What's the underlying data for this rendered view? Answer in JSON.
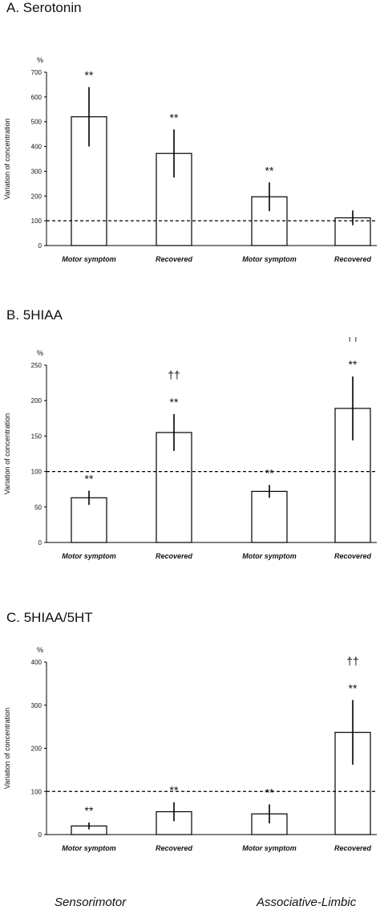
{
  "chart_data": [
    {
      "type": "bar",
      "title": "A. Serotonin",
      "ylabel": "Variation of concentration",
      "yunit": "%",
      "ylim": [
        0,
        700
      ],
      "yticks": [
        0,
        100,
        200,
        300,
        400,
        500,
        600,
        700
      ],
      "reference_line": 100,
      "categories": [
        "Motor symptom",
        "Recovered",
        "Motor symptom",
        "Recovered"
      ],
      "values": [
        520,
        372,
        197,
        112
      ],
      "errors": [
        120,
        97,
        58,
        30
      ],
      "annotations": [
        [
          "**"
        ],
        [
          "**"
        ],
        [
          "**"
        ],
        []
      ]
    },
    {
      "type": "bar",
      "title": "B. 5HIAA",
      "ylabel": "Variation of concentration",
      "yunit": "%",
      "ylim": [
        0,
        250
      ],
      "yticks": [
        0,
        50,
        100,
        150,
        200,
        250
      ],
      "reference_line": 100,
      "categories": [
        "Motor symptom",
        "Recovered",
        "Motor symptom",
        "Recovered"
      ],
      "values": [
        63,
        155,
        72,
        189
      ],
      "errors": [
        10,
        26,
        9,
        45
      ],
      "annotations": [
        [
          "**"
        ],
        [
          "**",
          "††"
        ],
        [
          "**"
        ],
        [
          "**",
          "††"
        ]
      ]
    },
    {
      "type": "bar",
      "title": "C. 5HIAA/5HT",
      "ylabel": "Variation of concentration",
      "yunit": "%",
      "ylim": [
        0,
        400
      ],
      "yticks": [
        0,
        100,
        200,
        300,
        400
      ],
      "reference_line": 100,
      "categories": [
        "Motor symptom",
        "Recovered",
        "Motor symptom",
        "Recovered"
      ],
      "values": [
        20,
        53,
        48,
        237
      ],
      "errors": [
        8,
        22,
        22,
        75
      ],
      "annotations": [
        [
          "**"
        ],
        [
          "**"
        ],
        [
          "**"
        ],
        [
          "**",
          "††"
        ]
      ]
    }
  ],
  "groups": [
    "Sensorimotor",
    "Associative-Limbic"
  ]
}
